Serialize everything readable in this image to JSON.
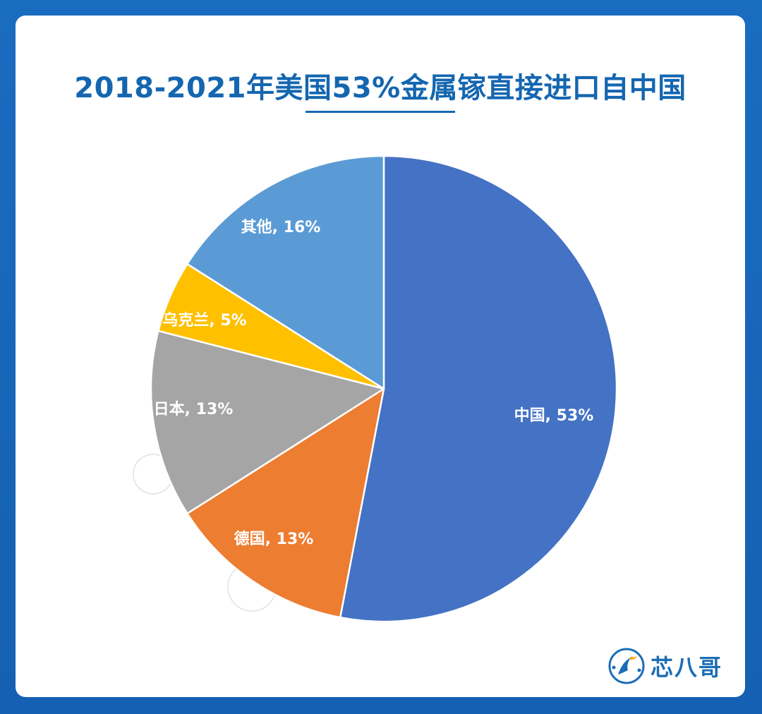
{
  "title": "2018-2021年美国53%金属镓直接进口自中国",
  "brand": {
    "name": "芯八哥",
    "icon": "bird-circle-logo"
  },
  "colors": {
    "background": "#1565b8",
    "title": "#1466b0",
    "slice_border": "#ffffff"
  },
  "chart_data": {
    "type": "pie",
    "title": "2018-2021年美国53%金属镓直接进口自中国",
    "start_angle_deg": 0,
    "direction": "clockwise",
    "slices": [
      {
        "name": "中国",
        "value": 53,
        "label": "中国, 53%",
        "color": "#4472c4"
      },
      {
        "name": "德国",
        "value": 13,
        "label": "德国, 13%",
        "color": "#ed7d31"
      },
      {
        "name": "日本",
        "value": 13,
        "label": "日本, 13%",
        "color": "#a5a5a5"
      },
      {
        "name": "乌克兰",
        "value": 5,
        "label": "乌克兰, 5%",
        "color": "#ffc000"
      },
      {
        "name": "其他",
        "value": 16,
        "label": "其他, 16%",
        "color": "#5b9bd5"
      }
    ]
  }
}
